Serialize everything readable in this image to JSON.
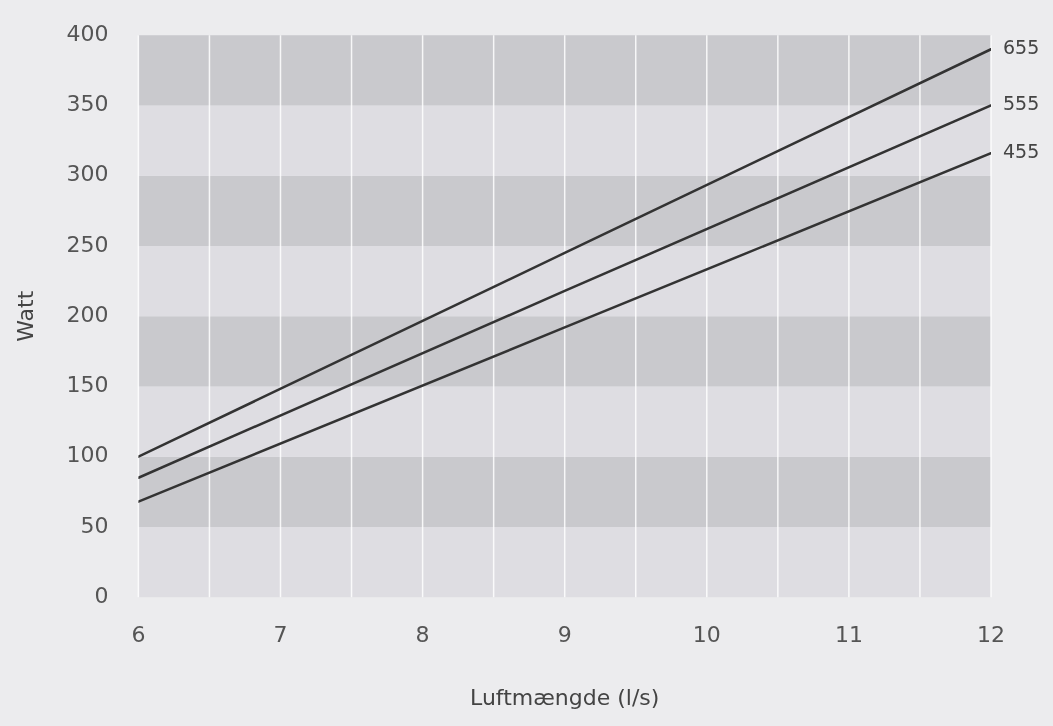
{
  "chart_data": {
    "type": "line",
    "xlabel": "Luftmængde (l/s)",
    "ylabel": "Watt",
    "x": [
      6,
      9,
      12
    ],
    "series": [
      {
        "name": "655",
        "color": "#333333",
        "values": [
          100,
          245,
          390
        ]
      },
      {
        "name": "555",
        "color": "#333333",
        "values": [
          85,
          218,
          350
        ]
      },
      {
        "name": "455",
        "color": "#333333",
        "values": [
          68,
          192,
          316
        ]
      }
    ],
    "xlim": [
      6,
      12
    ],
    "xticks": [
      6,
      {
        "value": 6.5,
        "label": null
      },
      7,
      {
        "value": 7.5,
        "label": null
      },
      8,
      {
        "value": 8.5,
        "label": null
      },
      9,
      {
        "value": 9.5,
        "label": null
      },
      10,
      {
        "value": 10.5,
        "label": null
      },
      11,
      {
        "value": 11.5,
        "label": null
      },
      12
    ],
    "ylim": [
      0,
      400
    ],
    "yticks": [
      0,
      50,
      100,
      150,
      200,
      250,
      300,
      350,
      400
    ],
    "bands": [
      {
        "axis": "y",
        "from": 0,
        "to": 50,
        "color": "#dedde2"
      },
      {
        "axis": "y",
        "from": 50,
        "to": 100,
        "color": "#c9c9cd"
      },
      {
        "axis": "y",
        "from": 100,
        "to": 150,
        "color": "#dedde2"
      },
      {
        "axis": "y",
        "from": 150,
        "to": 200,
        "color": "#c9c9cd"
      },
      {
        "axis": "y",
        "from": 200,
        "to": 250,
        "color": "#dedde2"
      },
      {
        "axis": "y",
        "from": 250,
        "to": 300,
        "color": "#c9c9cd"
      },
      {
        "axis": "y",
        "from": 300,
        "to": 350,
        "color": "#dedde2"
      },
      {
        "axis": "y",
        "from": 350,
        "to": 400,
        "color": "#c9c9cd"
      }
    ],
    "grid": "x",
    "legend": false,
    "marker": "none",
    "line_style": "solid"
  }
}
